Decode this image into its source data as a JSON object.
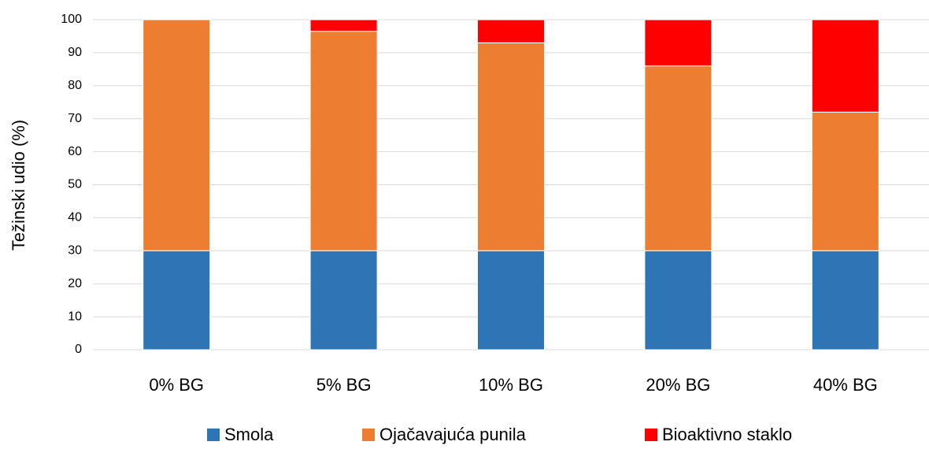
{
  "chart_data": {
    "type": "stacked_bar",
    "y_label": "Težinski udio (%)",
    "categories": [
      "0% BG",
      "5% BG",
      "10% BG",
      "20% BG",
      "40% BG"
    ],
    "series": [
      {
        "name": "Smola",
        "color": "#2e75b6",
        "values": [
          30,
          30,
          30,
          30,
          30
        ]
      },
      {
        "name": "Ojačavajuća punila",
        "color": "#ed7d31",
        "values": [
          70,
          66.5,
          63,
          56,
          42
        ]
      },
      {
        "name": "Bioaktivno staklo",
        "color": "#ff0000",
        "values": [
          0,
          3.5,
          7,
          14,
          28
        ]
      }
    ],
    "ylim": [
      0,
      100
    ],
    "yticks": [
      0,
      10,
      20,
      30,
      40,
      50,
      60,
      70,
      80,
      90,
      100
    ],
    "grid": true,
    "legend": "bottom"
  }
}
